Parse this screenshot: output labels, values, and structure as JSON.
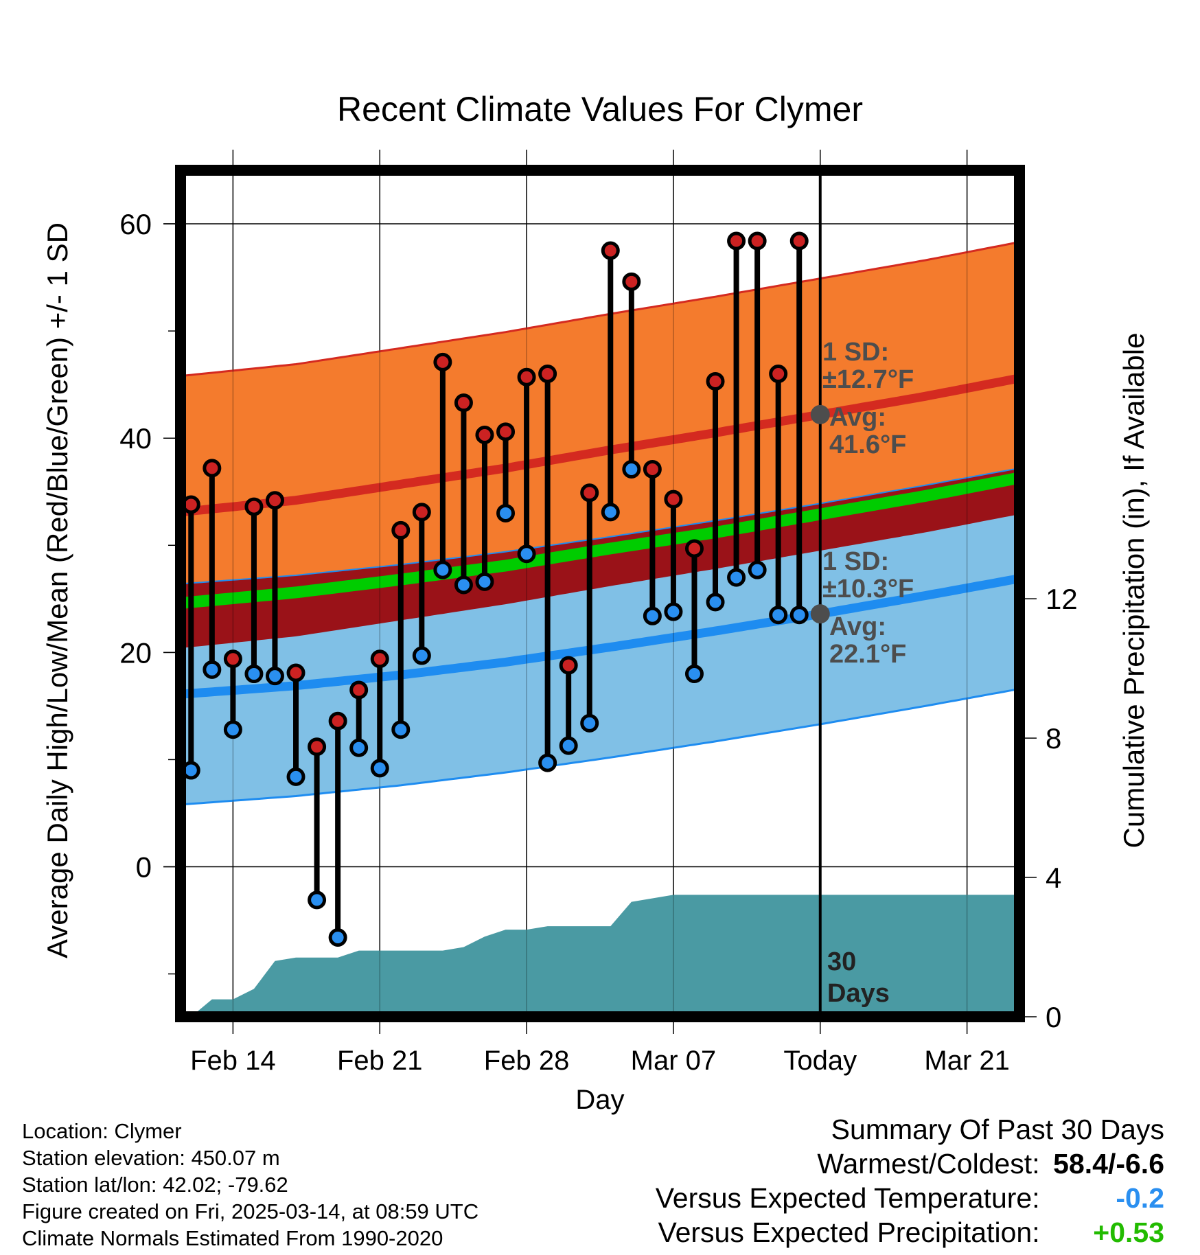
{
  "chart_data": {
    "type": "line",
    "title": "Recent Climate Values For Clymer",
    "xlabel": "Day",
    "ylabel": "Average Daily High/Low/Mean (Red/Blue/Green) +/- 1 SD",
    "ylabel_right": "Cumulative Precipitation (in), If Available",
    "ylim": [
      -14,
      65
    ],
    "ylim_right": [
      0,
      24.3
    ],
    "yticks": [
      0,
      20,
      40,
      60
    ],
    "yticks_right": [
      0,
      4,
      8,
      12
    ],
    "xlim": [
      -0.5,
      39.5
    ],
    "x_ticks": [
      {
        "x": 2,
        "label": "Feb 14"
      },
      {
        "x": 9,
        "label": "Feb 21"
      },
      {
        "x": 16,
        "label": "Feb 28"
      },
      {
        "x": 23,
        "label": "Mar 07"
      },
      {
        "x": 30,
        "label": "Today"
      },
      {
        "x": 37,
        "label": "Mar 21"
      }
    ],
    "today_x": 30,
    "normal_x": [
      -0.5,
      5,
      10,
      15,
      20,
      25,
      30,
      35,
      39.5
    ],
    "normal_high": [
      33.1,
      34.2,
      35.7,
      37.2,
      38.9,
      40.5,
      42.2,
      43.9,
      45.6
    ],
    "normal_high_sd": 12.7,
    "normal_low": [
      16.1,
      16.9,
      17.9,
      19.1,
      20.5,
      22.0,
      23.6,
      25.3,
      26.9
    ],
    "normal_low_sd": 10.3,
    "normal_mean": [
      24.6,
      25.6,
      26.8,
      28.1,
      29.7,
      31.2,
      32.9,
      34.6,
      36.3
    ],
    "series": [
      {
        "name": "Daily High",
        "color": "#cc2222",
        "x": [
          0,
          1,
          2,
          3,
          4,
          5,
          6,
          7,
          8,
          9,
          10,
          11,
          12,
          13,
          14,
          15,
          16,
          17,
          18,
          19,
          20,
          21,
          22,
          23,
          24,
          25,
          26,
          27,
          28,
          29
        ],
        "values": [
          33.8,
          37.2,
          19.4,
          33.6,
          34.2,
          18.1,
          11.2,
          13.6,
          16.5,
          19.4,
          31.4,
          33.1,
          47.1,
          43.3,
          40.3,
          40.6,
          45.7,
          46.0,
          18.8,
          34.9,
          57.5,
          54.6,
          37.1,
          34.3,
          29.7,
          45.3,
          58.4,
          58.4,
          46.0,
          58.4
        ]
      },
      {
        "name": "Daily Low",
        "color": "#2a8ff0",
        "x": [
          0,
          1,
          2,
          3,
          4,
          5,
          6,
          7,
          8,
          9,
          10,
          11,
          12,
          13,
          14,
          15,
          16,
          17,
          18,
          19,
          20,
          21,
          22,
          23,
          24,
          25,
          26,
          27,
          28,
          29
        ],
        "values": [
          9.0,
          18.4,
          12.8,
          18.0,
          17.8,
          8.4,
          -3.1,
          -6.6,
          11.1,
          9.2,
          12.8,
          19.7,
          27.7,
          26.3,
          26.6,
          33.0,
          29.2,
          9.7,
          11.3,
          13.4,
          33.1,
          37.1,
          23.4,
          23.8,
          18.0,
          24.7,
          27.0,
          27.7,
          23.5,
          23.5
        ]
      }
    ],
    "precip_cumulative": {
      "x": [
        0,
        1,
        2,
        3,
        4,
        5,
        6,
        7,
        8,
        9,
        10,
        11,
        12,
        13,
        14,
        15,
        16,
        17,
        18,
        19,
        20,
        21,
        22,
        23,
        24,
        25,
        26,
        27,
        28,
        29,
        30,
        39.5
      ],
      "values": [
        0,
        0.5,
        0.5,
        0.8,
        1.6,
        1.7,
        1.7,
        1.7,
        1.9,
        1.9,
        1.9,
        1.9,
        1.9,
        2.0,
        2.3,
        2.5,
        2.5,
        2.6,
        2.6,
        2.6,
        2.6,
        3.3,
        3.4,
        3.5,
        3.5,
        3.5,
        3.5,
        3.5,
        3.5,
        3.5,
        3.5,
        3.5
      ]
    },
    "colors": {
      "high_band": "#f47b2d",
      "high_line": "#d42a20",
      "low_band": "#80c0e6",
      "low_line": "#1e8cf0",
      "overlap": "#9a1218",
      "mean": "#00cc00",
      "precip": "#4a9aa3",
      "stem": "#000000",
      "marker_high": "#cc2222",
      "marker_low": "#2a8ff0"
    },
    "annotations": {
      "high_sd": "1 SD:",
      "high_sd_val": "±12.7°F",
      "high_avg": "Avg:",
      "high_avg_val": "41.6°F",
      "low_sd": "1 SD:",
      "low_sd_val": "±10.3°F",
      "low_avg": "Avg:",
      "low_avg_val": "22.1°F",
      "days_num": "30",
      "days_word": "Days"
    }
  },
  "info": {
    "location": "Location: Clymer",
    "elevation": "Station elevation: 450.07 m",
    "latlon": "Station lat/lon: 42.02; -79.62",
    "created": "Figure created on Fri, 2025-03-14, at 08:59 UTC",
    "normals": "Climate Normals Estimated From 1990-2020"
  },
  "summary": {
    "heading": "Summary Of Past 30 Days",
    "warmest_label": "Warmest/Coldest:",
    "warmest_value": "58.4/-6.6",
    "temp_label": "Versus Expected Temperature:",
    "temp_value": "-0.2",
    "temp_color": "#2a8ff0",
    "precip_label": "Versus Expected Precipitation:",
    "precip_value": "+0.53",
    "precip_color": "#22bb00"
  }
}
